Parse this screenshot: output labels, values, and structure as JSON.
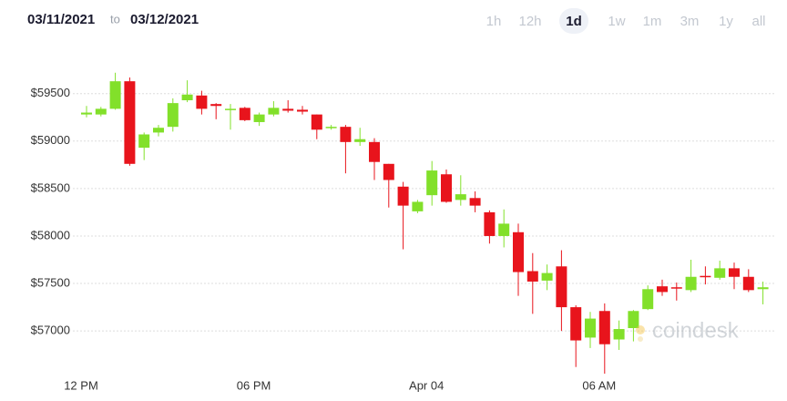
{
  "header": {
    "from": "03/11/2021",
    "to_word": "to",
    "to": "03/12/2021"
  },
  "ranges": {
    "options": [
      "1h",
      "12h",
      "1d",
      "1w",
      "1m",
      "3m",
      "1y",
      "all"
    ],
    "selected_index": 2
  },
  "watermark": "coindesk",
  "chart_data": {
    "type": "candlestick",
    "categories": [
      "12 PM",
      null,
      null,
      null,
      null,
      null,
      null,
      null,
      null,
      null,
      null,
      null,
      "06 PM",
      null,
      null,
      null,
      null,
      null,
      null,
      null,
      null,
      null,
      null,
      null,
      "Apr 04",
      null,
      null,
      null,
      null,
      null,
      null,
      null,
      null,
      null,
      null,
      null,
      "06 AM",
      null,
      null,
      null,
      null,
      null,
      null,
      null,
      null,
      null,
      null,
      null
    ],
    "open": [
      59280,
      59280,
      59340,
      59630,
      58930,
      59090,
      59150,
      59430,
      59480,
      59390,
      59330,
      59350,
      59200,
      59280,
      59340,
      59330,
      59280,
      59140,
      59150,
      58990,
      58990,
      58760,
      58520,
      58260,
      58430,
      58650,
      58380,
      58400,
      58250,
      58000,
      58040,
      57630,
      57530,
      57680,
      57250,
      56930,
      57210,
      56910,
      57030,
      57230,
      57470,
      57460,
      57430,
      57580,
      57560,
      57660,
      57570,
      57440
    ],
    "high": [
      59370,
      59360,
      59720,
      59670,
      59090,
      59170,
      59450,
      59640,
      59530,
      59400,
      59390,
      59360,
      59300,
      59420,
      59430,
      59370,
      59280,
      59170,
      59170,
      59140,
      59030,
      58760,
      58570,
      58380,
      58790,
      58700,
      58640,
      58470,
      58270,
      58280,
      58130,
      57820,
      57700,
      57850,
      57270,
      57200,
      57290,
      57110,
      57220,
      57480,
      57540,
      57510,
      57750,
      57680,
      57740,
      57720,
      57650,
      57520
    ],
    "low": [
      59250,
      59260,
      59330,
      58740,
      58800,
      59050,
      59100,
      59410,
      59280,
      59230,
      59120,
      59210,
      59160,
      59260,
      59300,
      59280,
      59020,
      59120,
      58660,
      58950,
      58590,
      58300,
      57860,
      58240,
      58320,
      58350,
      58320,
      58250,
      57920,
      57880,
      57370,
      57180,
      57430,
      57000,
      56620,
      56820,
      56550,
      56800,
      56890,
      57220,
      57370,
      57320,
      57410,
      57490,
      57540,
      57440,
      57410,
      57280
    ],
    "close": [
      59300,
      59340,
      59630,
      58760,
      59070,
      59140,
      59400,
      59490,
      59340,
      59370,
      59340,
      59220,
      59280,
      59350,
      59320,
      59310,
      59120,
      59150,
      58990,
      59020,
      58780,
      58590,
      58320,
      58360,
      58690,
      58360,
      58440,
      58320,
      58000,
      58130,
      57620,
      57520,
      57610,
      57250,
      56900,
      57130,
      56860,
      57020,
      57210,
      57440,
      57410,
      57450,
      57570,
      57570,
      57660,
      57570,
      57430,
      57460
    ],
    "up_color": "#82e02a",
    "down_color": "#e8141c",
    "ylim": [
      56550,
      59910
    ],
    "yticks": [
      {
        "value": 57000,
        "label": "$57000"
      },
      {
        "value": 57500,
        "label": "$57500"
      },
      {
        "value": 58000,
        "label": "$58000"
      },
      {
        "value": 58500,
        "label": "$58500"
      },
      {
        "value": 59000,
        "label": "$59000"
      },
      {
        "value": 59500,
        "label": "$59500"
      }
    ],
    "grid": true
  }
}
